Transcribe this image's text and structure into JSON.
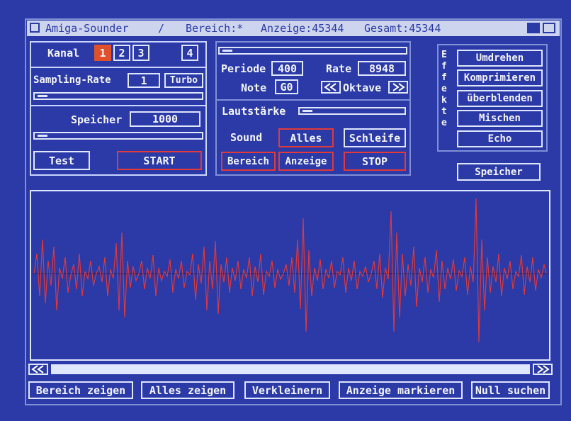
{
  "title_bar": {
    "app": "Amiga-Sounder",
    "separator": "/",
    "bereich": "Bereich:*",
    "anzeige": "Anzeige:45344",
    "gesamt": "Gesamt:45344"
  },
  "channel": {
    "label": "Kanal",
    "buttons": [
      "1",
      "2",
      "3",
      "4"
    ]
  },
  "sampling": {
    "label": "Sampling-Rate",
    "value": "1",
    "turbo": "Turbo"
  },
  "memory": {
    "label": "Speicher",
    "value": "1000"
  },
  "controls": {
    "test": "Test",
    "start": "START"
  },
  "playback": {
    "periode_label": "Periode",
    "periode": "400",
    "rate_label": "Rate",
    "rate": "8948",
    "note_label": "Note",
    "note": "G0",
    "oktave_label": "Oktave",
    "volume_label": "Lautstärke",
    "sound_label": "Sound",
    "buttons": [
      "Alles",
      "Schleife",
      "Bereich",
      "Anzeige",
      "STOP"
    ]
  },
  "effects": {
    "label": "Effekte",
    "buttons": [
      "Umdrehen",
      "Komprimieren",
      "überblenden",
      "Mischen",
      "Echo"
    ],
    "memory": "Speicher"
  },
  "bottom_buttons": [
    "Bereich zeigen",
    "Alles zeigen",
    "Verkleinern",
    "Anzeige markieren",
    "Null suchen"
  ]
}
